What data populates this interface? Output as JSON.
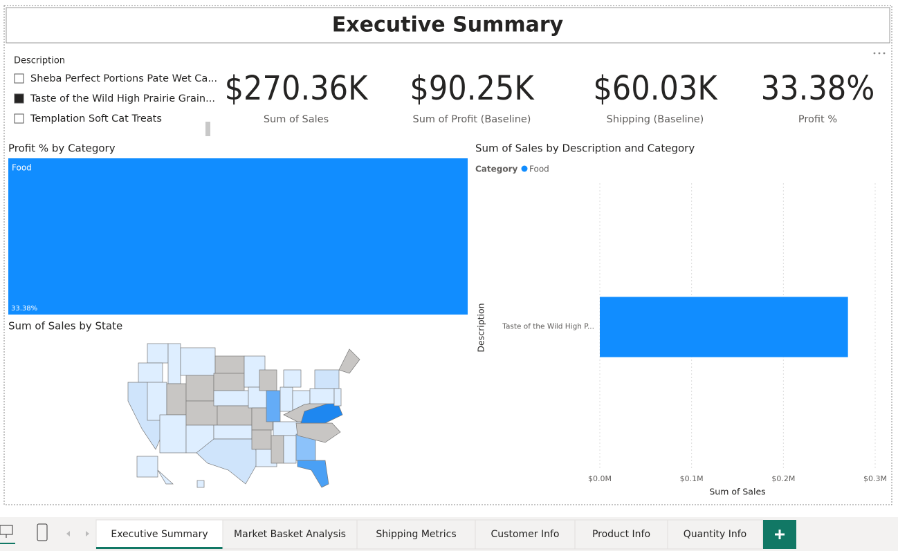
{
  "header": {
    "title": "Executive Summary"
  },
  "slicer": {
    "title": "Description",
    "items": [
      {
        "label": "Sheba Perfect Portions Pate Wet Ca...",
        "selected": false
      },
      {
        "label": "Taste of the Wild High Prairie Grain...",
        "selected": true
      },
      {
        "label": "Templation Soft Cat Treats",
        "selected": false
      }
    ]
  },
  "cards": [
    {
      "value": "$270.36K",
      "label": "Sum of Sales"
    },
    {
      "value": "$90.25K",
      "label": "Sum of Profit (Baseline)"
    },
    {
      "value": "$60.03K",
      "label": "Shipping (Baseline)"
    },
    {
      "value": "33.38%",
      "label": "Profit %"
    }
  ],
  "chart_data": [
    {
      "type": "treemap",
      "title": "Profit % by Category",
      "categories": [
        "Food"
      ],
      "values": [
        33.38
      ],
      "value_labels": [
        "33.38%"
      ],
      "color": "#118dff"
    },
    {
      "type": "bar",
      "orientation": "horizontal",
      "title": "Sum of Sales by Description and Category",
      "legend_title": "Category",
      "categories": [
        "Taste of the Wild High P..."
      ],
      "series": [
        {
          "name": "Food",
          "color": "#118dff",
          "values": [
            270360
          ]
        }
      ],
      "xlabel": "Sum of Sales",
      "ylabel": "Description",
      "xlim": [
        0,
        300000
      ],
      "xticks": [
        {
          "value": 0,
          "label": "$0.0M"
        },
        {
          "value": 100000,
          "label": "$0.1M"
        },
        {
          "value": 200000,
          "label": "$0.2M"
        },
        {
          "value": 300000,
          "label": "$0.3M"
        }
      ],
      "grid": true
    },
    {
      "type": "map",
      "title": "Sum of Sales by State"
    }
  ],
  "tabs": {
    "items": [
      "Executive Summary",
      "Market Basket Analysis",
      "Shipping Metrics",
      "Customer Info",
      "Product Info",
      "Quantity Info"
    ],
    "active": 0
  }
}
